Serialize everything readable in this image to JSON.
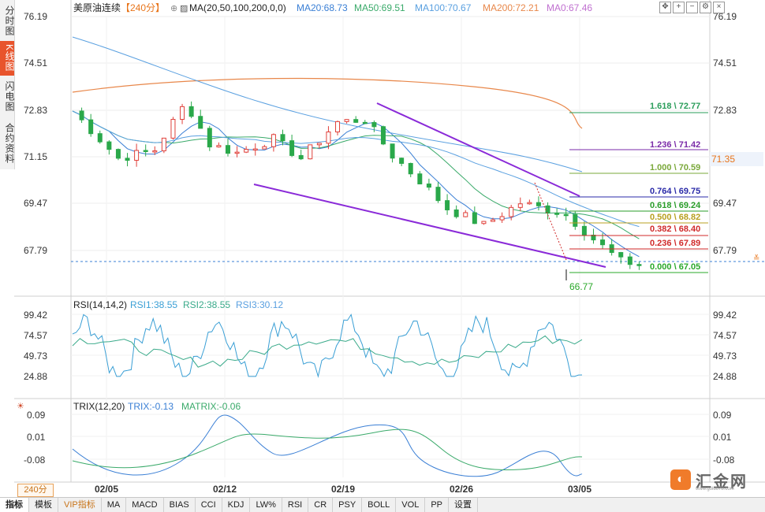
{
  "left_tabs": [
    {
      "label": "分时图",
      "active": false
    },
    {
      "label": "K线图",
      "active": true
    },
    {
      "label": "闪电图",
      "active": false
    },
    {
      "label": "合约资料",
      "active": false
    }
  ],
  "header": {
    "instrument": "美原油连续",
    "period_tag": "【240分】",
    "ma_title": "MA(20,50,100,200,0,0)",
    "ma_values": [
      {
        "label": "MA20:68.73",
        "color": "#3a7fd5"
      },
      {
        "label": "MA50:69.51",
        "color": "#3aaa6a"
      },
      {
        "label": "MA100:70.67",
        "color": "#5aa0e0"
      },
      {
        "label": "MA200:72.21",
        "color": "#e8874a"
      },
      {
        "label": "MA0:67.46",
        "color": "#c070d0"
      }
    ]
  },
  "controls": [
    "move-icon",
    "zoom-in-icon",
    "zoom-out-icon",
    "settings-icon",
    "close-icon"
  ],
  "price_axis": {
    "ticks": [
      "76.19",
      "74.51",
      "72.83",
      "71.15",
      "69.47",
      "67.79"
    ],
    "current_price": "71.35",
    "low_label": "66.77"
  },
  "fib_levels": [
    {
      "label": "1.618 \\ 72.77",
      "color": "#2a9d5a"
    },
    {
      "label": "1.236 \\ 71.42",
      "color": "#7a2aa8"
    },
    {
      "label": "1.000 \\ 70.59",
      "color": "#7aa83a"
    },
    {
      "label": "0.764 \\ 69.75",
      "color": "#2a2aa8"
    },
    {
      "label": "0.618 \\ 69.24",
      "color": "#2a9d2a"
    },
    {
      "label": "0.500 \\ 68.82",
      "color": "#b8a020"
    },
    {
      "label": "0.382 \\ 68.40",
      "color": "#d02a2a"
    },
    {
      "label": "0.236 \\ 67.89",
      "color": "#d02a2a"
    },
    {
      "label": "0.000 \\ 67.05",
      "color": "#2aa82a"
    }
  ],
  "rsi": {
    "title": "RSI(14,14,2)",
    "values": [
      {
        "label": "RSI1:38.55",
        "color": "#3a9fd5"
      },
      {
        "label": "RSI2:38.55",
        "color": "#3aaa8a"
      },
      {
        "label": "RSI3:30.12",
        "color": "#5aa0e0"
      }
    ],
    "ticks": [
      "99.42",
      "74.57",
      "49.73",
      "24.88"
    ]
  },
  "trix": {
    "title": "TRIX(12,20)",
    "values": [
      {
        "label": "TRIX:-0.13",
        "color": "#3a7fd5"
      },
      {
        "label": "MATRIX:-0.06",
        "color": "#3aaa6a"
      }
    ],
    "ticks": [
      "0.09",
      "0.01",
      "-0.08"
    ]
  },
  "dates": [
    "02/05",
    "02/12",
    "02/19",
    "02/26",
    "03/05"
  ],
  "period_button": "240分",
  "toolbar": [
    "指标",
    "模板",
    "VIP指标",
    "MA",
    "MACD",
    "BIAS",
    "CCI",
    "KDJ",
    "LW%",
    "RSI",
    "CR",
    "PSY",
    "BOLL",
    "VOL",
    "PP",
    "设置"
  ],
  "logo": {
    "text": "汇金网",
    "url": "www.gold678.com"
  }
}
